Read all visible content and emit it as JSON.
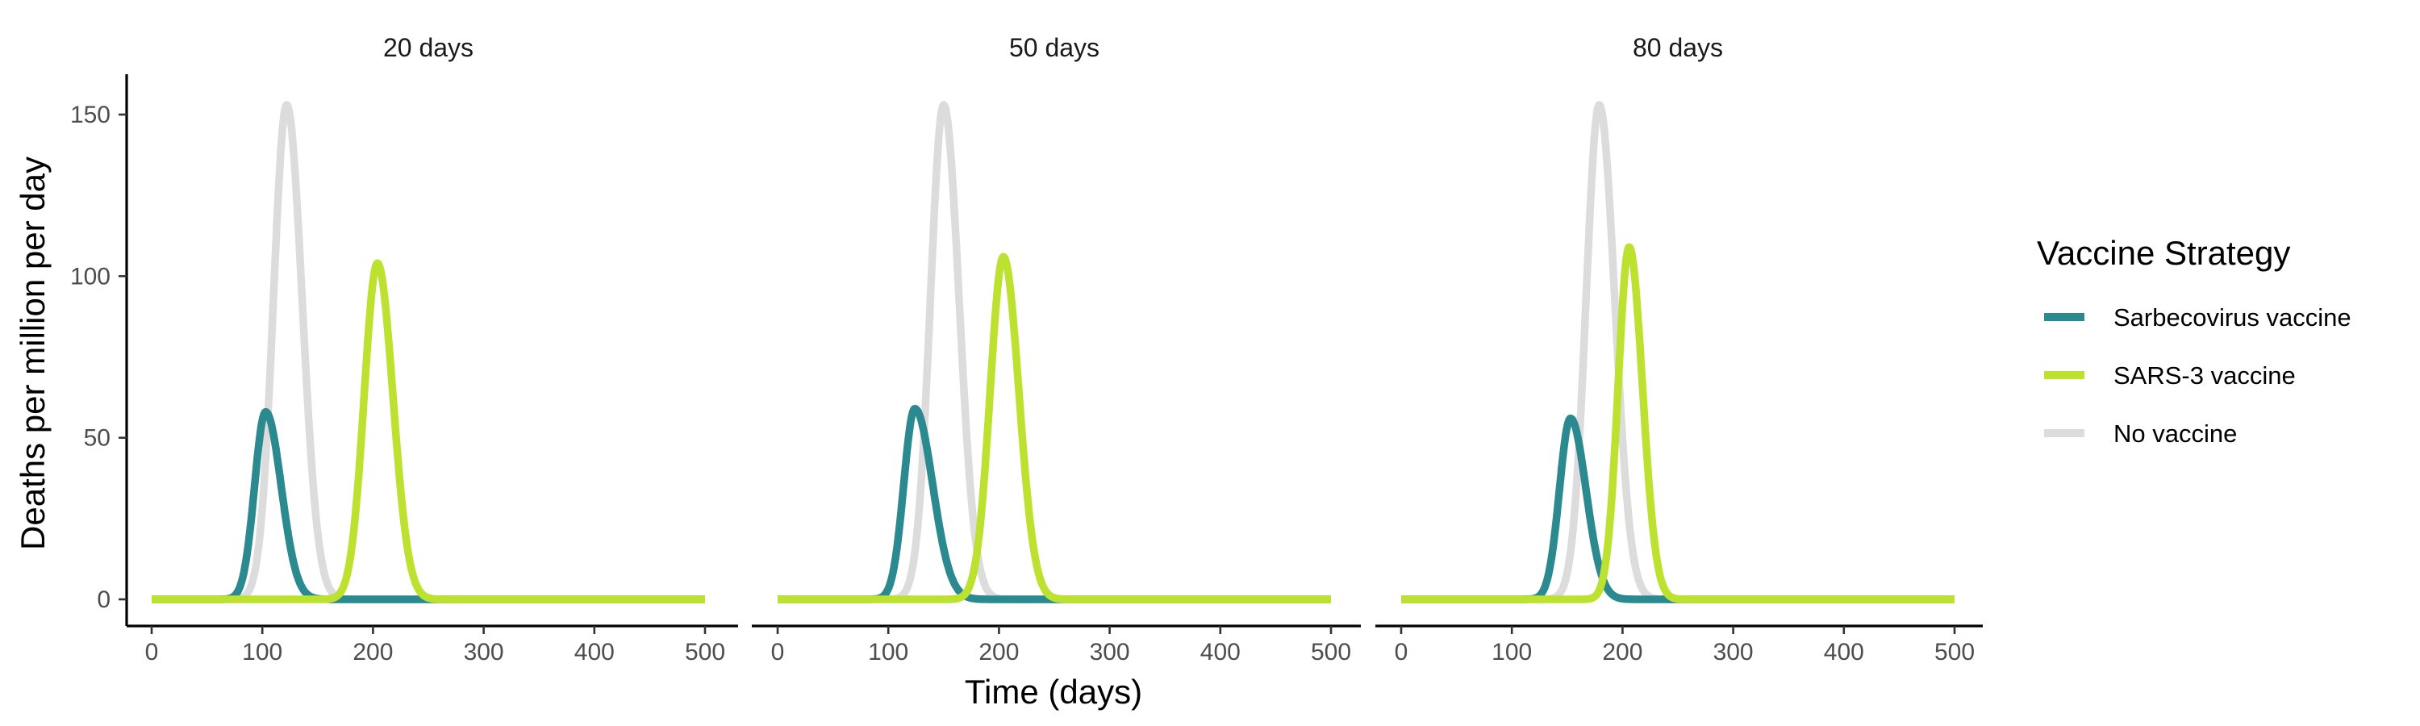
{
  "chart_data": {
    "type": "line",
    "title": "",
    "xlabel": "Time (days)",
    "ylabel": "Deaths per million per day",
    "xlim": [
      0,
      500
    ],
    "ylim": [
      0,
      155
    ],
    "x_ticks": [
      0,
      100,
      200,
      300,
      400,
      500
    ],
    "y_ticks": [
      0,
      50,
      100,
      150
    ],
    "grid": false,
    "legend": {
      "title": "Vaccine Strategy",
      "placement": "right",
      "entries": [
        {
          "name": "Sarbecovirus vaccine",
          "color": "#2a8a8f"
        },
        {
          "name": "SARS-3 vaccine",
          "color": "#bde12f"
        },
        {
          "name": "No vaccine",
          "color": "#dcdcdc"
        }
      ]
    },
    "panels": [
      {
        "title": "20 days",
        "series": [
          {
            "name": "No vaccine",
            "color": "#dcdcdc",
            "peak_x": 122,
            "peak_y": 153,
            "rise_width": 12,
            "fall_width": 14
          },
          {
            "name": "Sarbecovirus vaccine",
            "color": "#2a8a8f",
            "peak_x": 103,
            "peak_y": 58,
            "rise_width": 10,
            "fall_width": 14
          },
          {
            "name": "SARS-3 vaccine",
            "color": "#bde12f",
            "peak_x": 204,
            "peak_y": 104,
            "rise_width": 12,
            "fall_width": 14
          }
        ]
      },
      {
        "title": "50 days",
        "series": [
          {
            "name": "No vaccine",
            "color": "#dcdcdc",
            "peak_x": 150,
            "peak_y": 153,
            "rise_width": 12,
            "fall_width": 14
          },
          {
            "name": "Sarbecovirus vaccine",
            "color": "#2a8a8f",
            "peak_x": 124,
            "peak_y": 59,
            "rise_width": 10,
            "fall_width": 16
          },
          {
            "name": "SARS-3 vaccine",
            "color": "#bde12f",
            "peak_x": 204,
            "peak_y": 106,
            "rise_width": 12,
            "fall_width": 14
          }
        ]
      },
      {
        "title": "80 days",
        "series": [
          {
            "name": "No vaccine",
            "color": "#dcdcdc",
            "peak_x": 179,
            "peak_y": 153,
            "rise_width": 12,
            "fall_width": 14
          },
          {
            "name": "Sarbecovirus vaccine",
            "color": "#2a8a8f",
            "peak_x": 153,
            "peak_y": 56,
            "rise_width": 10,
            "fall_width": 14
          },
          {
            "name": "SARS-3 vaccine",
            "color": "#bde12f",
            "peak_x": 206,
            "peak_y": 109,
            "rise_width": 10,
            "fall_width": 12
          }
        ]
      }
    ]
  }
}
